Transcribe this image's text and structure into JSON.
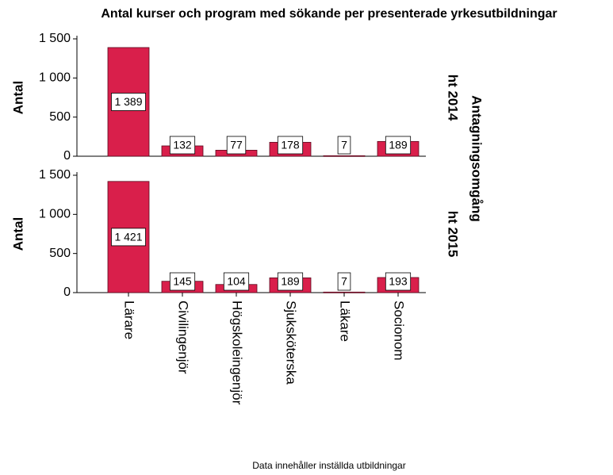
{
  "chart_data": {
    "type": "bar",
    "title": "Antal kurser och program med sökande per presenterade yrkesutbildningar",
    "ylabel": "Antal",
    "panel_label": "Antagningsomgång",
    "categories": [
      "Lärare",
      "Civilingenjör",
      "Högskoleingenjör",
      "Sjuksköterska",
      "Läkare",
      "Socionom"
    ],
    "series": [
      {
        "name": "ht 2014",
        "color": "#d91f4b",
        "values": [
          1389,
          132,
          77,
          178,
          7,
          189
        ],
        "value_labels": [
          "1 389",
          "132",
          "77",
          "178",
          "7",
          "189"
        ]
      },
      {
        "name": "ht 2015",
        "color": "#d91f4b",
        "values": [
          1421,
          145,
          104,
          189,
          7,
          193
        ],
        "value_labels": [
          "1 421",
          "145",
          "104",
          "189",
          "7",
          "193"
        ]
      }
    ],
    "ylim": [
      0,
      1500
    ],
    "yticks": [
      0,
      500,
      {
        "value": 1000,
        "label": "1 000"
      },
      {
        "value": 1500,
        "label": "1 500"
      }
    ],
    "footnote": "Data innehåller inställda utbildningar"
  }
}
